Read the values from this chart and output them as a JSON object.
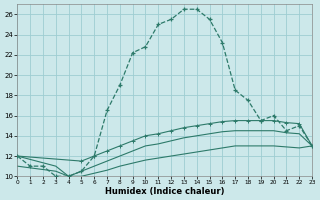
{
  "bg_color": "#cce8ea",
  "grid_color": "#9ecdd2",
  "line_color": "#2d7a6a",
  "xlabel": "Humidex (Indice chaleur)",
  "xlim": [
    0,
    23
  ],
  "ylim": [
    10,
    27
  ],
  "xtick_vals": [
    0,
    1,
    2,
    3,
    4,
    5,
    6,
    7,
    8,
    9,
    10,
    11,
    12,
    13,
    14,
    15,
    16,
    17,
    18,
    19,
    20,
    21,
    22,
    23
  ],
  "ytick_vals": [
    10,
    12,
    14,
    16,
    18,
    20,
    22,
    24,
    26
  ],
  "bell_x": [
    0,
    1,
    2,
    3,
    4,
    5,
    6,
    7,
    8,
    9,
    10,
    11,
    12,
    13,
    14,
    15,
    16,
    17,
    18,
    19,
    20,
    21,
    22,
    23
  ],
  "bell_y": [
    12,
    11,
    11,
    10,
    10,
    10.5,
    12,
    16.5,
    19,
    22.2,
    22.8,
    25,
    25.5,
    26.5,
    26.5,
    25.5,
    23.2,
    18.5,
    17.5,
    15.5,
    16,
    14.5,
    15,
    13
  ],
  "line_top_x": [
    0,
    5,
    6,
    7,
    8,
    9,
    10,
    11,
    12,
    13,
    14,
    15,
    16,
    17,
    18,
    19,
    20,
    21,
    22,
    23
  ],
  "line_top_y": [
    12,
    11.5,
    12,
    12.5,
    13,
    13.5,
    14,
    14.2,
    14.5,
    14.8,
    15,
    15.2,
    15.4,
    15.5,
    15.5,
    15.5,
    15.5,
    15.3,
    15.2,
    13
  ],
  "line_mid_x": [
    0,
    3,
    4,
    5,
    6,
    7,
    8,
    9,
    10,
    11,
    12,
    13,
    14,
    15,
    16,
    17,
    18,
    19,
    20,
    21,
    22,
    23
  ],
  "line_mid_y": [
    12,
    11,
    10,
    10.5,
    11,
    11.5,
    12,
    12.5,
    13,
    13.2,
    13.5,
    13.8,
    14,
    14.2,
    14.4,
    14.5,
    14.5,
    14.5,
    14.5,
    14.3,
    14.2,
    13
  ],
  "line_bot_x": [
    0,
    3,
    4,
    5,
    6,
    7,
    8,
    9,
    10,
    11,
    12,
    13,
    14,
    15,
    16,
    17,
    18,
    19,
    20,
    21,
    22,
    23
  ],
  "line_bot_y": [
    11,
    10.5,
    10,
    10,
    10.3,
    10.6,
    11,
    11.3,
    11.6,
    11.8,
    12,
    12.2,
    12.4,
    12.6,
    12.8,
    13,
    13,
    13,
    13,
    12.9,
    12.8,
    13
  ]
}
